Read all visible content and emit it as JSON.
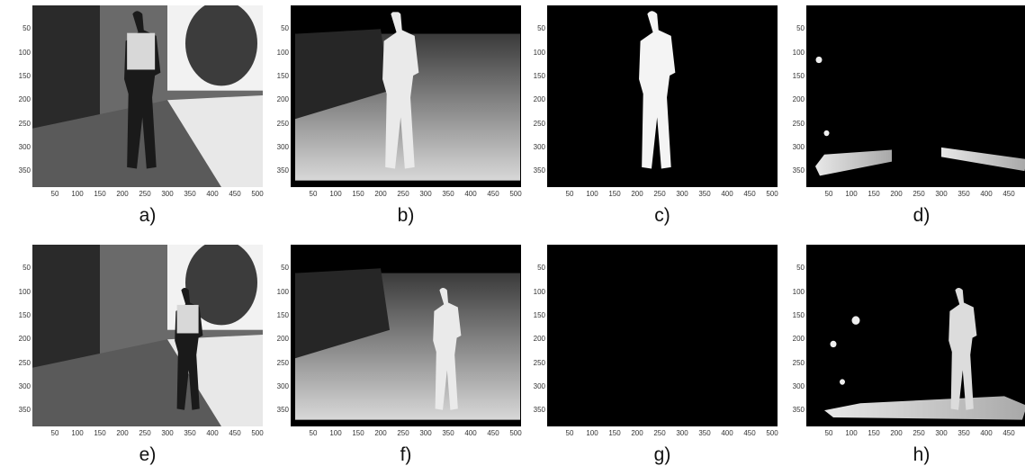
{
  "panels": [
    {
      "id": "a",
      "caption": "a)",
      "kind": "photo-walking",
      "pose": "near"
    },
    {
      "id": "b",
      "caption": "b)",
      "kind": "depth-full",
      "pose": "near"
    },
    {
      "id": "c",
      "caption": "c)",
      "kind": "mask-person",
      "pose": "near"
    },
    {
      "id": "d",
      "caption": "d)",
      "kind": "mask-ground",
      "pose": "near"
    },
    {
      "id": "e",
      "caption": "e)",
      "kind": "photo-walking",
      "pose": "far"
    },
    {
      "id": "f",
      "caption": "f)",
      "kind": "depth-full",
      "pose": "far"
    },
    {
      "id": "g",
      "caption": "g)",
      "kind": "mask-empty",
      "pose": "far"
    },
    {
      "id": "h",
      "caption": "h)",
      "kind": "mask-person-ground",
      "pose": "far"
    }
  ],
  "axes": {
    "y_ticks": [
      "50",
      "100",
      "150",
      "200",
      "250",
      "300",
      "350"
    ],
    "x_ticks": [
      "50",
      "100",
      "150",
      "200",
      "250",
      "300",
      "350",
      "400",
      "450",
      "500"
    ]
  }
}
